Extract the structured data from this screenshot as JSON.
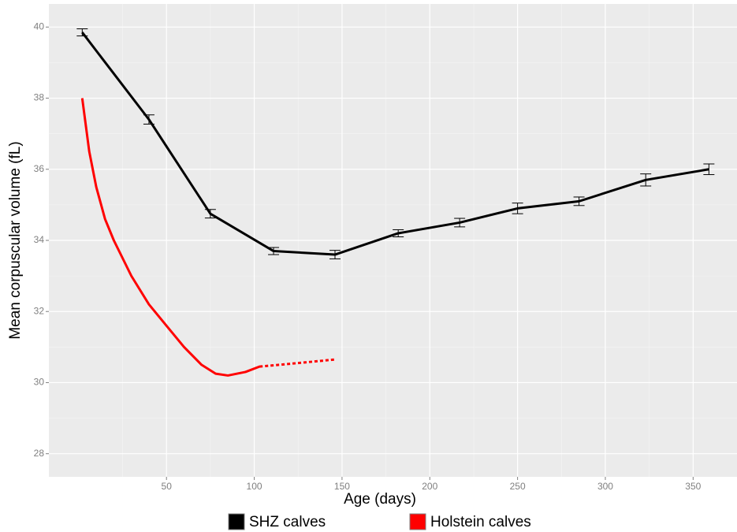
{
  "chart_data": {
    "type": "line",
    "x_label": "Age (days)",
    "y_label": "Mean corpuscular volume (fL)",
    "xlim": [
      -17,
      375
    ],
    "ylim": [
      27.35,
      40.65
    ],
    "xticks": [
      50,
      100,
      150,
      200,
      250,
      300,
      350
    ],
    "yticks": [
      28,
      30,
      32,
      34,
      36,
      38,
      40
    ],
    "grid": true,
    "legend": "bottom",
    "series": [
      {
        "name": "SHZ calves",
        "color": "#000000",
        "x": [
          2,
          40,
          75,
          111,
          146,
          182,
          217,
          250,
          285,
          323,
          359
        ],
        "values": [
          39.85,
          37.4,
          34.75,
          33.7,
          33.6,
          34.2,
          34.5,
          34.9,
          35.1,
          35.7,
          36.0
        ],
        "errors": [
          0.1,
          0.13,
          0.12,
          0.1,
          0.12,
          0.1,
          0.12,
          0.15,
          0.12,
          0.17,
          0.15
        ]
      },
      {
        "name": "Holstein calves",
        "color": "#ff0000",
        "x": [
          2,
          6,
          10,
          15,
          20,
          30,
          40,
          50,
          60,
          70,
          78,
          85,
          95,
          103,
          125,
          146
        ],
        "values": [
          38.0,
          36.5,
          35.5,
          34.6,
          34.0,
          33.0,
          32.2,
          31.6,
          31.0,
          30.5,
          30.25,
          30.2,
          30.3,
          30.45,
          30.55,
          30.65
        ],
        "dashed_from": 103
      }
    ]
  }
}
